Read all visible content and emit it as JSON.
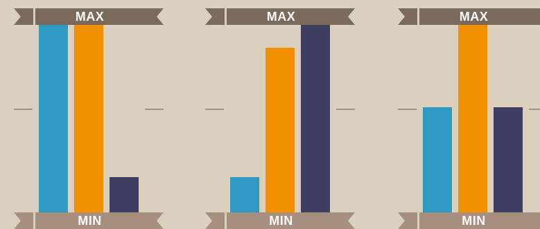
{
  "labels": {
    "max": "MAX",
    "min": "MIN"
  },
  "colors": {
    "background": "#dbcfbd",
    "max_ribbon": "#7b6a59",
    "max_ribbon_tail": "#7b6a59",
    "min_ribbon": "#a78e7e",
    "min_ribbon_tail": "#a78e7e",
    "tick": "#9c9384",
    "series": [
      "#2e99c1",
      "#f29100",
      "#3e3e63"
    ]
  },
  "chart_data": [
    {
      "type": "bar",
      "categories": [
        "",
        "",
        ""
      ],
      "values": [
        1.0,
        1.0,
        0.19
      ],
      "ylim": [
        0,
        1
      ],
      "colors": [
        "#2e99c1",
        "#f29100",
        "#3e3e63"
      ],
      "top_label": "MAX",
      "bottom_label": "MIN"
    },
    {
      "type": "bar",
      "categories": [
        "",
        "",
        ""
      ],
      "values": [
        0.19,
        0.88,
        1.0
      ],
      "ylim": [
        0,
        1
      ],
      "colors": [
        "#2e99c1",
        "#f29100",
        "#3e3e63"
      ],
      "top_label": "MAX",
      "bottom_label": "MIN"
    },
    {
      "type": "bar",
      "categories": [
        "",
        "",
        ""
      ],
      "values": [
        0.56,
        1.0,
        0.56
      ],
      "ylim": [
        0,
        1
      ],
      "colors": [
        "#2e99c1",
        "#f29100",
        "#3e3e63"
      ],
      "top_label": "MAX",
      "bottom_label": "MIN"
    }
  ]
}
